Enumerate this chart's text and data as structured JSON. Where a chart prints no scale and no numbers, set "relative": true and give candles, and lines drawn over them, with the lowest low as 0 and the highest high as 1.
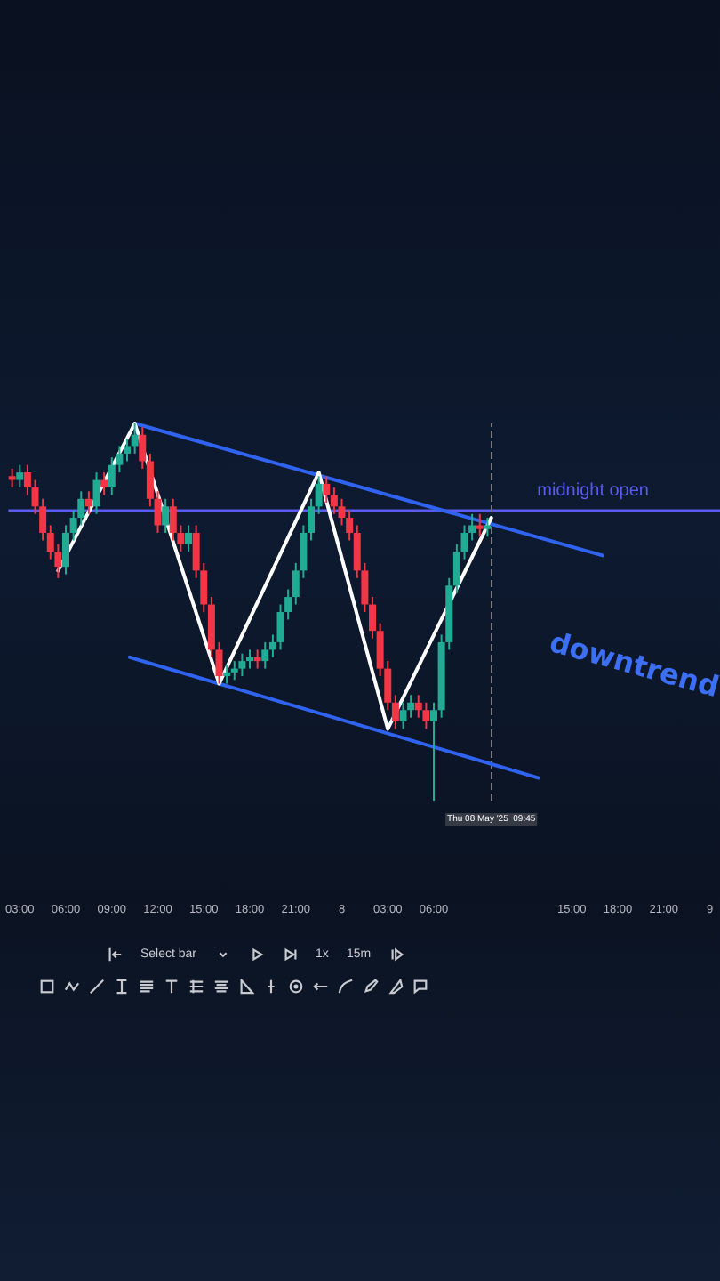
{
  "chart_data": {
    "type": "candlestick",
    "relative": true,
    "xlim": [
      "2025-05-07T02:15",
      "2025-05-09T00:40"
    ],
    "xticks": [
      {
        "value": "2025-05-07T03:00",
        "label": "03:00"
      },
      {
        "value": "2025-05-07T06:00",
        "label": "06:00"
      },
      {
        "value": "2025-05-07T09:00",
        "label": "09:00"
      },
      {
        "value": "2025-05-07T12:00",
        "label": "12:00"
      },
      {
        "value": "2025-05-07T15:00",
        "label": "15:00"
      },
      {
        "value": "2025-05-07T18:00",
        "label": "18:00"
      },
      {
        "value": "2025-05-07T21:00",
        "label": "21:00"
      },
      {
        "value": "2025-05-08T00:00",
        "label": "8"
      },
      {
        "value": "2025-05-08T03:00",
        "label": "03:00"
      },
      {
        "value": "2025-05-08T06:00",
        "label": "06:00"
      },
      {
        "value": "2025-05-08T15:00",
        "label": "15:00"
      },
      {
        "value": "2025-05-08T18:00",
        "label": "18:00"
      },
      {
        "value": "2025-05-08T21:00",
        "label": "21:00"
      },
      {
        "value": "2025-05-09T00:00",
        "label": "9"
      }
    ],
    "x": [
      "2025-05-07T02:30",
      "2025-05-07T03:00",
      "2025-05-07T03:30",
      "2025-05-07T04:00",
      "2025-05-07T04:30",
      "2025-05-07T05:00",
      "2025-05-07T05:30",
      "2025-05-07T06:00",
      "2025-05-07T06:30",
      "2025-05-07T07:00",
      "2025-05-07T07:30",
      "2025-05-07T08:00",
      "2025-05-07T08:30",
      "2025-05-07T09:00",
      "2025-05-07T09:30",
      "2025-05-07T10:00",
      "2025-05-07T10:30",
      "2025-05-07T11:00",
      "2025-05-07T11:30",
      "2025-05-07T12:00",
      "2025-05-07T12:30",
      "2025-05-07T13:00",
      "2025-05-07T13:30",
      "2025-05-07T14:00",
      "2025-05-07T14:30",
      "2025-05-07T15:00",
      "2025-05-07T15:30",
      "2025-05-07T16:00",
      "2025-05-07T16:30",
      "2025-05-07T17:00",
      "2025-05-07T17:30",
      "2025-05-07T18:00",
      "2025-05-07T18:30",
      "2025-05-07T19:00",
      "2025-05-07T19:30",
      "2025-05-07T20:00",
      "2025-05-07T20:30",
      "2025-05-07T21:00",
      "2025-05-07T21:30",
      "2025-05-07T22:00",
      "2025-05-07T22:30",
      "2025-05-07T23:00",
      "2025-05-07T23:30",
      "2025-05-08T00:00",
      "2025-05-08T00:30",
      "2025-05-08T01:00",
      "2025-05-08T01:30",
      "2025-05-08T02:00",
      "2025-05-08T02:30",
      "2025-05-08T03:00",
      "2025-05-08T03:30",
      "2025-05-08T04:00",
      "2025-05-08T04:30",
      "2025-05-08T05:00",
      "2025-05-08T05:30",
      "2025-05-08T06:00",
      "2025-05-08T06:30",
      "2025-05-08T07:00",
      "2025-05-08T07:30",
      "2025-05-08T08:00",
      "2025-05-08T08:30",
      "2025-05-08T09:00",
      "2025-05-08T09:30"
    ],
    "ohlc": [
      [
        0.86,
        0.88,
        0.83,
        0.85
      ],
      [
        0.85,
        0.89,
        0.83,
        0.87
      ],
      [
        0.87,
        0.89,
        0.81,
        0.83
      ],
      [
        0.83,
        0.85,
        0.76,
        0.78
      ],
      [
        0.78,
        0.8,
        0.69,
        0.71
      ],
      [
        0.71,
        0.73,
        0.64,
        0.66
      ],
      [
        0.66,
        0.68,
        0.59,
        0.62
      ],
      [
        0.62,
        0.73,
        0.6,
        0.71
      ],
      [
        0.71,
        0.77,
        0.69,
        0.75
      ],
      [
        0.75,
        0.82,
        0.73,
        0.8
      ],
      [
        0.8,
        0.82,
        0.76,
        0.78
      ],
      [
        0.78,
        0.87,
        0.76,
        0.85
      ],
      [
        0.85,
        0.87,
        0.81,
        0.83
      ],
      [
        0.83,
        0.91,
        0.81,
        0.89
      ],
      [
        0.89,
        0.94,
        0.87,
        0.92
      ],
      [
        0.92,
        0.96,
        0.9,
        0.94
      ],
      [
        0.94,
        1.0,
        0.92,
        0.97
      ],
      [
        0.97,
        0.99,
        0.88,
        0.9
      ],
      [
        0.9,
        0.92,
        0.78,
        0.8
      ],
      [
        0.8,
        0.82,
        0.71,
        0.73
      ],
      [
        0.73,
        0.8,
        0.71,
        0.78
      ],
      [
        0.78,
        0.8,
        0.69,
        0.71
      ],
      [
        0.71,
        0.73,
        0.66,
        0.68
      ],
      [
        0.68,
        0.73,
        0.66,
        0.71
      ],
      [
        0.71,
        0.73,
        0.59,
        0.61
      ],
      [
        0.61,
        0.63,
        0.5,
        0.52
      ],
      [
        0.52,
        0.54,
        0.38,
        0.4
      ],
      [
        0.4,
        0.42,
        0.31,
        0.33
      ],
      [
        0.33,
        0.36,
        0.31,
        0.34
      ],
      [
        0.34,
        0.37,
        0.32,
        0.35
      ],
      [
        0.35,
        0.39,
        0.33,
        0.37
      ],
      [
        0.37,
        0.4,
        0.35,
        0.38
      ],
      [
        0.38,
        0.4,
        0.35,
        0.37
      ],
      [
        0.37,
        0.42,
        0.35,
        0.4
      ],
      [
        0.4,
        0.44,
        0.38,
        0.42
      ],
      [
        0.42,
        0.52,
        0.4,
        0.5
      ],
      [
        0.5,
        0.56,
        0.48,
        0.54
      ],
      [
        0.54,
        0.63,
        0.52,
        0.61
      ],
      [
        0.61,
        0.73,
        0.59,
        0.71
      ],
      [
        0.71,
        0.8,
        0.69,
        0.78
      ],
      [
        0.78,
        0.86,
        0.76,
        0.84
      ],
      [
        0.84,
        0.86,
        0.79,
        0.81
      ],
      [
        0.81,
        0.83,
        0.76,
        0.78
      ],
      [
        0.78,
        0.8,
        0.73,
        0.75
      ],
      [
        0.75,
        0.77,
        0.69,
        0.71
      ],
      [
        0.71,
        0.73,
        0.59,
        0.61
      ],
      [
        0.61,
        0.63,
        0.5,
        0.52
      ],
      [
        0.52,
        0.54,
        0.43,
        0.45
      ],
      [
        0.45,
        0.47,
        0.33,
        0.35
      ],
      [
        0.35,
        0.37,
        0.24,
        0.26
      ],
      [
        0.26,
        0.28,
        0.19,
        0.21
      ],
      [
        0.21,
        0.26,
        0.19,
        0.24
      ],
      [
        0.24,
        0.28,
        0.22,
        0.26
      ],
      [
        0.26,
        0.28,
        0.22,
        0.24
      ],
      [
        0.24,
        0.26,
        0.19,
        0.21
      ],
      [
        0.21,
        0.26,
        0.0,
        0.24
      ],
      [
        0.24,
        0.44,
        0.22,
        0.42
      ],
      [
        0.42,
        0.59,
        0.4,
        0.57
      ],
      [
        0.57,
        0.68,
        0.55,
        0.66
      ],
      [
        0.66,
        0.73,
        0.64,
        0.71
      ],
      [
        0.71,
        0.76,
        0.69,
        0.73
      ],
      [
        0.73,
        0.76,
        0.7,
        0.72
      ],
      [
        0.72,
        0.75,
        0.7,
        0.73
      ]
    ],
    "series": [
      {
        "type": "line",
        "color": "#2f63f0",
        "x": [
          "2025-05-07T10:30",
          "2025-05-08T17:00"
        ],
        "values": [
          1.0,
          0.65
        ]
      },
      {
        "type": "line",
        "color": "#2f63f0",
        "x": [
          "2025-05-07T10:10",
          "2025-05-08T12:50"
        ],
        "values": [
          0.38,
          0.06
        ]
      },
      {
        "type": "line",
        "color": "#ffffff",
        "x": [
          "2025-05-07T05:30",
          "2025-05-07T10:30",
          "2025-05-07T16:00",
          "2025-05-07T22:30",
          "2025-05-08T03:00",
          "2025-05-08T09:45"
        ],
        "values": [
          0.61,
          1.0,
          0.31,
          0.87,
          0.19,
          0.75
        ]
      }
    ],
    "ref_lines": [
      {
        "axis": "y",
        "value": 0.77,
        "label": "midnight open",
        "color": "#5b5bf0"
      },
      {
        "axis": "x",
        "value": "2025-05-08T09:45",
        "label": "Thu 08 May '25  09:45",
        "line_style": "dashed",
        "color": "#787b86"
      }
    ],
    "annotations": [
      "downtrend",
      "Select bar",
      "1x",
      "15m"
    ]
  }
}
